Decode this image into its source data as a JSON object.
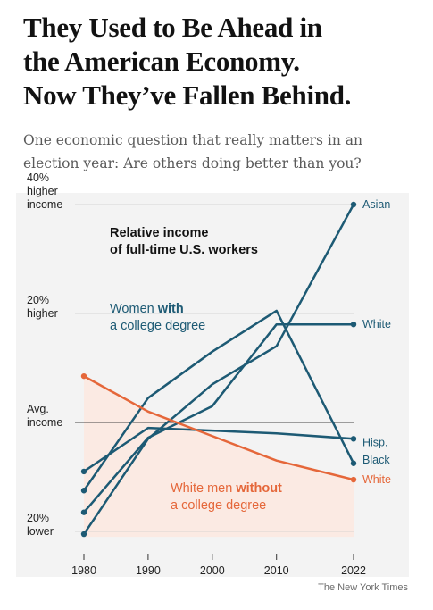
{
  "headline": {
    "lines": [
      "They Used to Be Ahead in",
      "the American Economy.",
      "Now They’ve Fallen Behind."
    ]
  },
  "dek": {
    "lines": [
      "One economic question that really matters in an",
      "election year: Are others doing better than you?"
    ]
  },
  "credit": "The New York Times",
  "chart_data": {
    "type": "line",
    "title": "Relative income of full-time U.S. workers",
    "title_lines": [
      "Relative income",
      "of full-time U.S. workers"
    ],
    "x": [
      1980,
      1990,
      2000,
      2010,
      2022
    ],
    "x_tick_labels": [
      "1980",
      "1990",
      "2000",
      "2010",
      "2022"
    ],
    "ylim": [
      -21,
      42
    ],
    "y_ticks": [
      {
        "value": 40,
        "lines": [
          "40%",
          "higher",
          "income"
        ]
      },
      {
        "value": 20,
        "lines": [
          "20%",
          "higher"
        ]
      },
      {
        "value": 0,
        "lines": [
          "Avg.",
          "income"
        ]
      },
      {
        "value": -20,
        "lines": [
          "20%",
          "lower"
        ]
      }
    ],
    "colors": {
      "women": "#1d5a74",
      "men": "#e5673a",
      "axis": "#444444",
      "grid": "#cccccc",
      "band": "#fbeae3",
      "bg": "#f3f3f3"
    },
    "series": [
      {
        "name": "Asian",
        "group": "women",
        "values": [
          -20.5,
          -3,
          7,
          14,
          40
        ]
      },
      {
        "name": "White",
        "group": "women",
        "values": [
          -16.5,
          -2.8,
          3,
          18,
          18
        ]
      },
      {
        "name": "Black",
        "group": "women",
        "values": [
          -12.5,
          4.5,
          13,
          20.5,
          -7.5
        ]
      },
      {
        "name": "Hisp.",
        "group": "women",
        "values": [
          -9,
          -1,
          -1.5,
          -2,
          -3
        ]
      },
      {
        "name": "White",
        "group": "men",
        "values": [
          8.5,
          2,
          -2.5,
          -7,
          -10.5
        ]
      }
    ],
    "annotations": {
      "women_lines": [
        "Women ",
        "with",
        "a college degree"
      ],
      "men_lines": [
        "White men ",
        "without",
        "a college degree"
      ]
    }
  }
}
